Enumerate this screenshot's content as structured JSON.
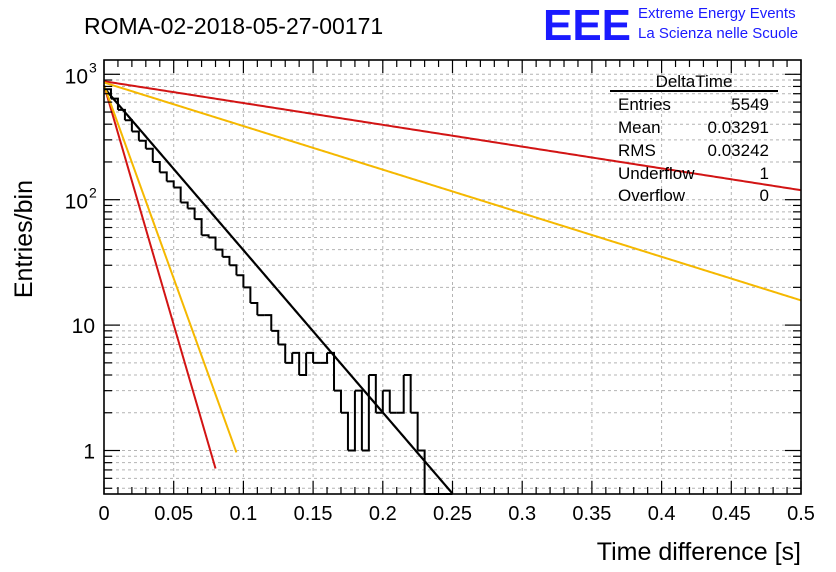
{
  "run_title": "ROMA-02-2018-05-27-00171",
  "logo": {
    "letters": "EEE",
    "line1": "Extreme Energy Events",
    "line2": "La Scienza nelle Scuole",
    "color": "#1a1aff"
  },
  "stats": {
    "name": "DeltaTime",
    "rows": [
      {
        "label": "Entries",
        "value": "5549"
      },
      {
        "label": "Mean",
        "value": "0.03291"
      },
      {
        "label": "RMS",
        "value": "0.03242"
      },
      {
        "label": "Underflow",
        "value": "1"
      },
      {
        "label": "Overflow",
        "value": "0"
      }
    ]
  },
  "chart_data": {
    "type": "histogram",
    "title": "ROMA-02-2018-05-27-00171",
    "xlabel": "Time difference [s]",
    "ylabel": "Entries/bin",
    "xlim": [
      0,
      0.5
    ],
    "ylim": [
      0.45,
      1300
    ],
    "yscale": "log",
    "grid": true,
    "xticks": [
      {
        "v": 0,
        "label": "0"
      },
      {
        "v": 0.05,
        "label": "0.05"
      },
      {
        "v": 0.1,
        "label": "0.1"
      },
      {
        "v": 0.15,
        "label": "0.15"
      },
      {
        "v": 0.2,
        "label": "0.2"
      },
      {
        "v": 0.25,
        "label": "0.25"
      },
      {
        "v": 0.3,
        "label": "0.3"
      },
      {
        "v": 0.35,
        "label": "0.35"
      },
      {
        "v": 0.4,
        "label": "0.4"
      },
      {
        "v": 0.45,
        "label": "0.45"
      },
      {
        "v": 0.5,
        "label": "0.5"
      }
    ],
    "yticks": [
      {
        "v": 1,
        "base": "1",
        "exp": ""
      },
      {
        "v": 10,
        "base": "10",
        "exp": ""
      },
      {
        "v": 100,
        "base": "10",
        "exp": "2"
      },
      {
        "v": 1000,
        "base": "10",
        "exp": "3"
      }
    ],
    "bin_width": 0.005,
    "histogram": [
      760,
      640,
      520,
      430,
      350,
      295,
      255,
      200,
      165,
      140,
      125,
      95,
      85,
      70,
      52,
      50,
      40,
      35,
      30,
      25,
      20,
      15,
      12,
      12,
      9,
      7,
      5,
      6,
      4,
      6,
      5,
      5,
      6,
      3,
      2,
      1,
      3,
      1,
      4,
      2,
      3,
      2,
      2,
      4,
      2,
      1,
      0,
      0,
      0,
      0
    ],
    "series": [
      {
        "name": "exponential fit",
        "color": "#000000",
        "width": 2.2,
        "y0": 780,
        "slope": 29.8,
        "xmax": 0.25
      },
      {
        "name": "red steep",
        "color": "#d21414",
        "width": 2,
        "y0": 820,
        "slope": 88,
        "xmax": 0.08
      },
      {
        "name": "yellow steep",
        "color": "#f5b800",
        "width": 2,
        "y0": 820,
        "slope": 71,
        "xmax": 0.095
      },
      {
        "name": "red shallow",
        "color": "#d21414",
        "width": 2,
        "y0": 880,
        "slope": 4.0,
        "xmax": 0.5
      },
      {
        "name": "yellow shallow",
        "color": "#f5b800",
        "width": 2,
        "y0": 860,
        "slope": 8.0,
        "xmax": 0.5
      }
    ]
  }
}
